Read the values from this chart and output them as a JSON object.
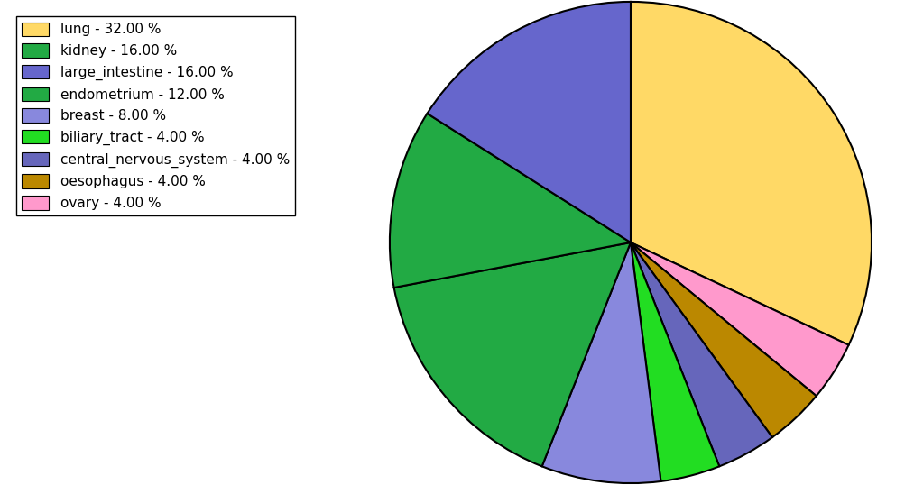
{
  "labels": [
    "lung",
    "kidney",
    "large_intestine",
    "endometrium",
    "breast",
    "biliary_tract",
    "central_nervous_system",
    "oesophagus",
    "ovary"
  ],
  "values": [
    32.0,
    16.0,
    16.0,
    12.0,
    8.0,
    4.0,
    4.0,
    4.0,
    4.0
  ],
  "legend_labels": [
    "lung - 32.00 %",
    "kidney - 16.00 %",
    "large_intestine - 16.00 %",
    "endometrium - 12.00 %",
    "breast - 8.00 %",
    "biliary_tract - 4.00 %",
    "central_nervous_system - 4.00 %",
    "oesophagus - 4.00 %",
    "ovary - 4.00 %"
  ],
  "colors": {
    "lung": "#FFD966",
    "kidney": "#22AA44",
    "large_intestine": "#6666CC",
    "endometrium": "#22AA44",
    "breast": "#8888DD",
    "biliary_tract": "#22DD22",
    "central_nervous_system": "#6666BB",
    "oesophagus": "#BB8800",
    "ovary": "#FF99CC"
  },
  "legend_colors": [
    "#FFD966",
    "#22AA44",
    "#6666CC",
    "#22AA44",
    "#8888DD",
    "#22DD22",
    "#6666BB",
    "#BB8800",
    "#FF99CC"
  ],
  "clockwise_order": [
    "lung",
    "ovary",
    "oesophagus",
    "central_nervous_system",
    "biliary_tract",
    "breast",
    "kidney",
    "endometrium",
    "large_intestine"
  ],
  "figsize": [
    10.13,
    5.38
  ],
  "dpi": 100
}
